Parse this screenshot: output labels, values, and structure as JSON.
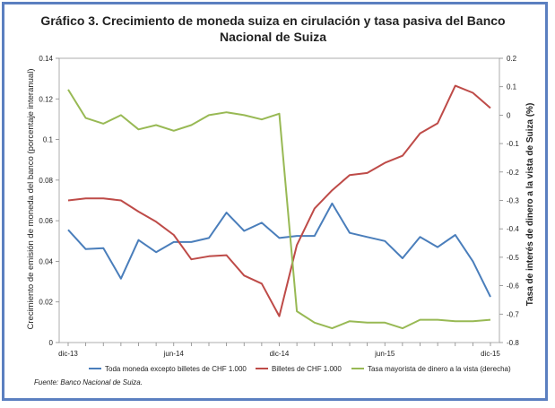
{
  "chart_data": {
    "type": "line",
    "title_line1": "Gráfico 3. Crecimiento de moneda suiza en cirulación y tasa pasiva del  Banco",
    "title_line2": "Nacional de Suiza",
    "ylabel_left": "Crecimiento de emisión de moneda del banco (porcentaje interanual)",
    "ylabel_right": "Tasa de interés de dinero a la vista de Suiza (%)",
    "x_tick_labels": [
      "dic-13",
      "jun-14",
      "dic-14",
      "jun-15",
      "dic-15"
    ],
    "x_tick_indices": [
      0,
      6,
      12,
      18,
      24
    ],
    "y_left_ticks": [
      "0",
      "0.02",
      "0.04",
      "0.06",
      "0.08",
      "0.1",
      "0.12",
      "0.14"
    ],
    "y_left_range": [
      0,
      0.14
    ],
    "y_right_ticks": [
      "0.2",
      "0.1",
      "0",
      "-0.1",
      "-0.2",
      "-0.3",
      "-0.4",
      "-0.5",
      "-0.6",
      "-0.7",
      "-0.8"
    ],
    "y_right_range": [
      -0.8,
      0.2
    ],
    "series": [
      {
        "name": "Toda moneda excepto billetes de CHF 1.000",
        "axis": "left",
        "color": "#4a7ebb",
        "values": [
          0.0555,
          0.046,
          0.0465,
          0.0315,
          0.0505,
          0.0445,
          0.0495,
          0.0495,
          0.0515,
          0.064,
          0.055,
          0.059,
          0.0515,
          0.0525,
          0.0525,
          0.0685,
          0.054,
          0.052,
          0.05,
          0.0415,
          0.052,
          0.047,
          0.053,
          0.04,
          0.0225
        ]
      },
      {
        "name": "Billetes de CHF 1.000",
        "axis": "left",
        "color": "#be4b48",
        "values": [
          0.07,
          0.071,
          0.071,
          0.07,
          0.0645,
          0.0595,
          0.053,
          0.041,
          0.0425,
          0.043,
          0.033,
          0.029,
          0.013,
          0.048,
          0.066,
          0.075,
          0.0825,
          0.0835,
          0.0885,
          0.092,
          0.103,
          0.108,
          0.1265,
          0.123,
          0.1155
        ]
      },
      {
        "name": "Tasa mayorista de dinero a la vista (derecha)",
        "axis": "right",
        "color": "#98b954",
        "values": [
          0.09,
          -0.01,
          -0.03,
          0.0,
          -0.05,
          -0.035,
          -0.055,
          -0.035,
          0.0,
          0.01,
          0.0,
          -0.015,
          0.005,
          -0.69,
          -0.73,
          -0.75,
          -0.725,
          -0.73,
          -0.73,
          -0.75,
          -0.72,
          -0.72,
          -0.725,
          -0.725,
          -0.72
        ]
      }
    ]
  },
  "source_text": "Fuente: Banco Nacional de Suiza."
}
